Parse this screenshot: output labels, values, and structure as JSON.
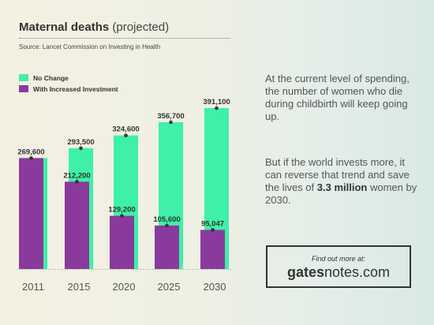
{
  "header": {
    "title_bold": "Maternal deaths",
    "title_sub": "(projected)",
    "source": "Source: Lancet Commission on Investing in Health"
  },
  "colors": {
    "no_change": "#3ef0a8",
    "increased_investment": "#8a3a9c"
  },
  "chart_data": {
    "type": "bar",
    "title": "Maternal deaths (projected)",
    "categories": [
      "2011",
      "2015",
      "2020",
      "2025",
      "2030"
    ],
    "series": [
      {
        "name": "No Change",
        "values": [
          269600,
          293500,
          324600,
          356700,
          391100
        ],
        "labels": [
          "",
          "293,500",
          "324,600",
          "356,700",
          "391,100"
        ]
      },
      {
        "name": "With Increased Investment",
        "values": [
          269600,
          212200,
          129200,
          105600,
          95047
        ],
        "labels": [
          "269,600",
          "212,200",
          "129,200",
          "105,600",
          "95,047"
        ]
      }
    ],
    "legend": "top-left",
    "grid": false
  },
  "text": {
    "para1": "At the current level of spending, the number of women who die during childbirth will keep going up.",
    "para2_pre": "But if the world invests more, it can reverse that trend and save the lives of ",
    "para2_bold": "3.3 million",
    "para2_post": " women by 2030."
  },
  "cta": {
    "find_label": "Find out more at:",
    "site_bold": "gates",
    "site_rest": "notes.com"
  }
}
